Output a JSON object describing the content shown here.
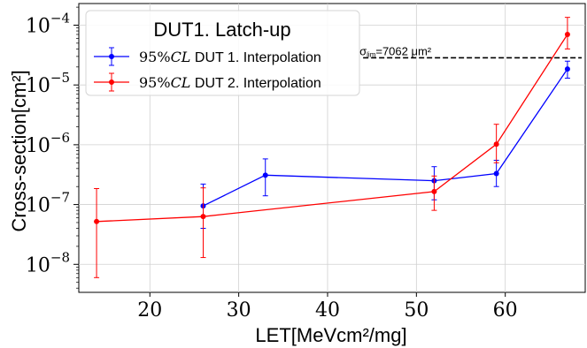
{
  "chart_data": {
    "type": "line",
    "xlabel": "LET[MeVcm²/mg]",
    "ylabel": "Cross-section[cm²]",
    "xlim": [
      12,
      69
    ],
    "ylim": [
      3.4e-09,
      0.00023
    ],
    "yscale": "log",
    "grid": true,
    "x_ticks": [
      20,
      30,
      40,
      50,
      60
    ],
    "x_tick_labels": [
      "20",
      "30",
      "40",
      "50",
      "60"
    ],
    "y_ticks": [
      1e-08,
      1e-07,
      1e-06,
      1e-05,
      0.0001
    ],
    "y_tick_labels": [
      {
        "base": "10",
        "exp": "−8"
      },
      {
        "base": "10",
        "exp": "−7"
      },
      {
        "base": "10",
        "exp": "−6"
      },
      {
        "base": "10",
        "exp": "−5"
      },
      {
        "base": "10",
        "exp": "−4"
      }
    ],
    "legend": {
      "title": "DUT1. Latch-up",
      "placement": "top-left",
      "entries": [
        {
          "math": "95%",
          "italic": "CL",
          "text": " DUT 1. Interpolation"
        },
        {
          "math": "95%",
          "italic": "CL",
          "text": " DUT 2. Interpolation"
        }
      ]
    },
    "series": [
      {
        "color": "#0000ff",
        "points": [
          {
            "x": 26,
            "y": 9.5e-08,
            "lo": 4e-08,
            "hi": 2.2e-07
          },
          {
            "x": 33,
            "y": 3.1e-07,
            "lo": 1.4e-07,
            "hi": 5.8e-07
          },
          {
            "x": 52,
            "y": 2.5e-07,
            "lo": 1.2e-07,
            "hi": 4.3e-07
          },
          {
            "x": 59,
            "y": 3.3e-07,
            "lo": 2e-07,
            "hi": 5.5e-07
          },
          {
            "x": 67,
            "y": 1.85e-05,
            "lo": 1.3e-05,
            "hi": 2.5e-05
          }
        ]
      },
      {
        "color": "#ff0000",
        "points": [
          {
            "x": 14,
            "y": 5.2e-08,
            "lo": 6e-09,
            "hi": 1.85e-07
          },
          {
            "x": 26,
            "y": 6.3e-08,
            "lo": 1.3e-08,
            "hi": 1.9e-07
          },
          {
            "x": 52,
            "y": 1.65e-07,
            "lo": 8e-08,
            "hi": 3e-07
          },
          {
            "x": 59,
            "y": 1.02e-06,
            "lo": 5e-07,
            "hi": 2.2e-06
          },
          {
            "x": 67,
            "y": 7e-05,
            "lo": 4e-05,
            "hi": 0.000135
          }
        ]
      }
    ],
    "annotation": {
      "sigma": "σ",
      "subscript": "lim",
      "text": "=7062",
      "unit": "μm²",
      "line_y": 2.85e-05,
      "line_x_start": 44,
      "color": "#000000"
    }
  }
}
